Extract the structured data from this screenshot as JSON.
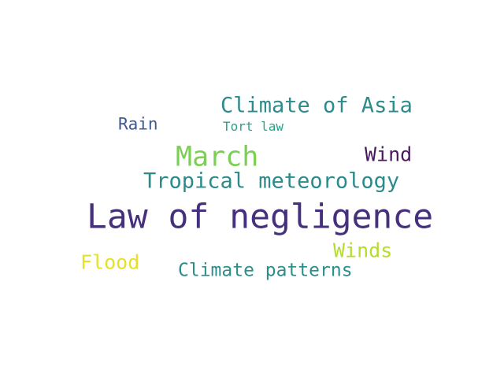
{
  "words": [
    {
      "text": "Law of negligence",
      "color": "#462f7c"
    },
    {
      "text": "March",
      "color": "#7ad151"
    },
    {
      "text": "Climate of Asia",
      "color": "#2e8b8b"
    },
    {
      "text": "Tropical meteorology",
      "color": "#2a8b8a"
    },
    {
      "text": "Wind",
      "color": "#4a1a5e"
    },
    {
      "text": "Winds",
      "color": "#b5dd2b"
    },
    {
      "text": "Flood",
      "color": "#e7e02a"
    },
    {
      "text": "Climate patterns",
      "color": "#2a8f8c"
    },
    {
      "text": "Rain",
      "color": "#3e5a92"
    },
    {
      "text": "Tort law",
      "color": "#29a38a"
    }
  ]
}
